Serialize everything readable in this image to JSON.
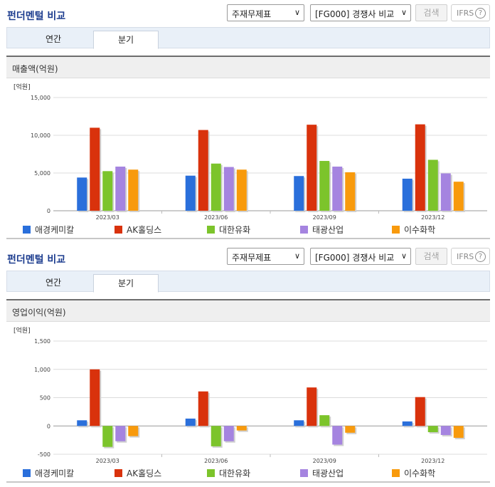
{
  "sections": [
    {
      "title": "펀더멘털 비교",
      "select1": "주재무제표",
      "select2": "[FG000] 경쟁사 비교",
      "search_label": "검색",
      "ifrs_label": "IFRS",
      "ifrs_help": "?",
      "tabs": [
        "연간",
        "분기"
      ],
      "active_tab": "분기",
      "chart_title": "매출액(억원)"
    },
    {
      "title": "펀더멘털 비교",
      "select1": "주재무제표",
      "select2": "[FG000] 경쟁사 비교",
      "search_label": "검색",
      "ifrs_label": "IFRS",
      "ifrs_help": "?",
      "tabs": [
        "연간",
        "분기"
      ],
      "active_tab": "분기",
      "chart_title": "영업이익(억원)"
    }
  ],
  "chart_data": [
    {
      "type": "bar",
      "title": "매출액(억원)",
      "unit_label": "[억원]",
      "categories": [
        "2023/03",
        "2023/06",
        "2023/09",
        "2023/12"
      ],
      "ylim": [
        0,
        15000
      ],
      "yticks": [
        0,
        5000,
        10000,
        15000
      ],
      "ytick_labels": [
        "0",
        "5,000",
        "10,000",
        "15,000"
      ],
      "grid": true,
      "legend_position": "bottom",
      "series": [
        {
          "name": "애경케미칼",
          "color": "#2a6fdb",
          "values": [
            4400,
            4650,
            4600,
            4250
          ]
        },
        {
          "name": "AK홀딩스",
          "color": "#d9320c",
          "values": [
            11000,
            10700,
            11400,
            11450
          ]
        },
        {
          "name": "대한유화",
          "color": "#7cc42b",
          "values": [
            5250,
            6250,
            6600,
            6750
          ]
        },
        {
          "name": "태광산업",
          "color": "#a584e0",
          "values": [
            5850,
            5800,
            5850,
            4950
          ]
        },
        {
          "name": "이수화학",
          "color": "#f89a0c",
          "values": [
            5450,
            5450,
            5100,
            3850
          ]
        }
      ]
    },
    {
      "type": "bar",
      "title": "영업이익(억원)",
      "unit_label": "[억원]",
      "categories": [
        "2023/03",
        "2023/06",
        "2023/09",
        "2023/12"
      ],
      "ylim": [
        -500,
        1500
      ],
      "yticks": [
        -500,
        0,
        500,
        1000,
        1500
      ],
      "ytick_labels": [
        "-500",
        "0",
        "500",
        "1,000",
        "1,500"
      ],
      "grid": true,
      "legend_position": "bottom",
      "series": [
        {
          "name": "애경케미칼",
          "color": "#2a6fdb",
          "values": [
            100,
            130,
            100,
            80
          ]
        },
        {
          "name": "AK홀딩스",
          "color": "#d9320c",
          "values": [
            1000,
            610,
            680,
            510
          ]
        },
        {
          "name": "대한유화",
          "color": "#7cc42b",
          "values": [
            -370,
            -360,
            190,
            -110
          ]
        },
        {
          "name": "태광산업",
          "color": "#a584e0",
          "values": [
            -270,
            -270,
            -330,
            -160
          ]
        },
        {
          "name": "이수화학",
          "color": "#f89a0c",
          "values": [
            -180,
            -80,
            -120,
            -210
          ]
        }
      ]
    }
  ]
}
